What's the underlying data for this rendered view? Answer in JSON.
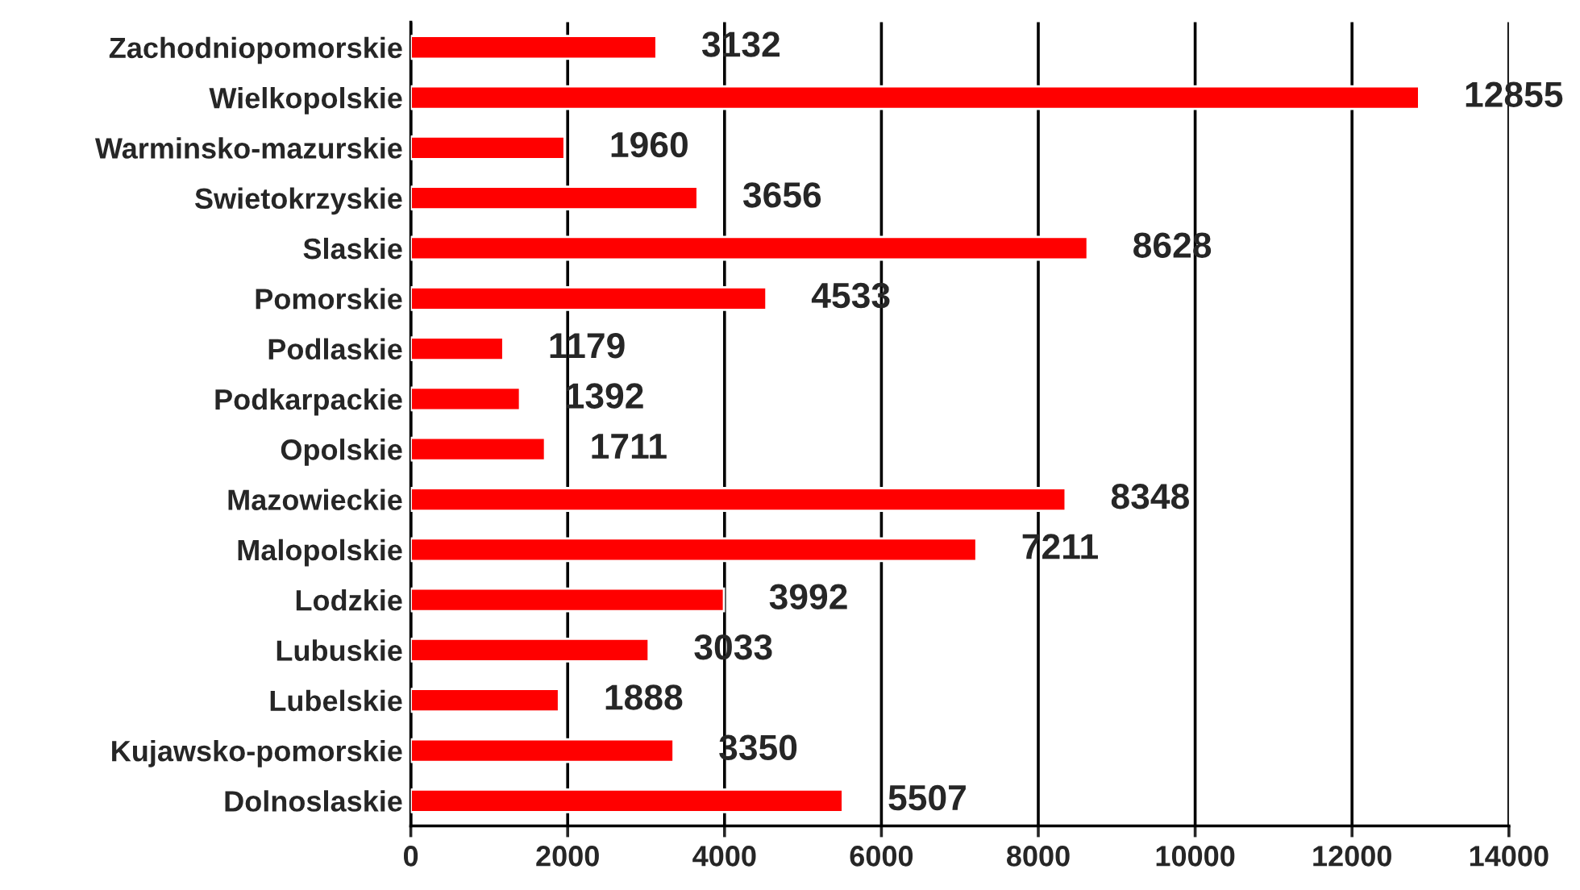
{
  "chart_data": {
    "type": "bar",
    "orientation": "horizontal",
    "categories": [
      "Zachodniopomorskie",
      "Wielkopolskie",
      "Warminsko-mazurskie",
      "Swietokrzyskie",
      "Slaskie",
      "Pomorskie",
      "Podlaskie",
      "Podkarpackie",
      "Opolskie",
      "Mazowieckie",
      "Malopolskie",
      "Lodzkie",
      "Lubuskie",
      "Lubelskie",
      "Kujawsko-pomorskie",
      "Dolnoslaskie"
    ],
    "values": [
      3132,
      12855,
      1960,
      3656,
      8628,
      4533,
      1179,
      1392,
      1711,
      8348,
      7211,
      3992,
      3033,
      1888,
      3350,
      5507
    ],
    "color": "#ff0000",
    "xlim": [
      0,
      14000
    ],
    "xticks": [
      0,
      2000,
      4000,
      6000,
      8000,
      10000,
      12000,
      14000
    ],
    "grid": "x",
    "data_labels": true
  }
}
